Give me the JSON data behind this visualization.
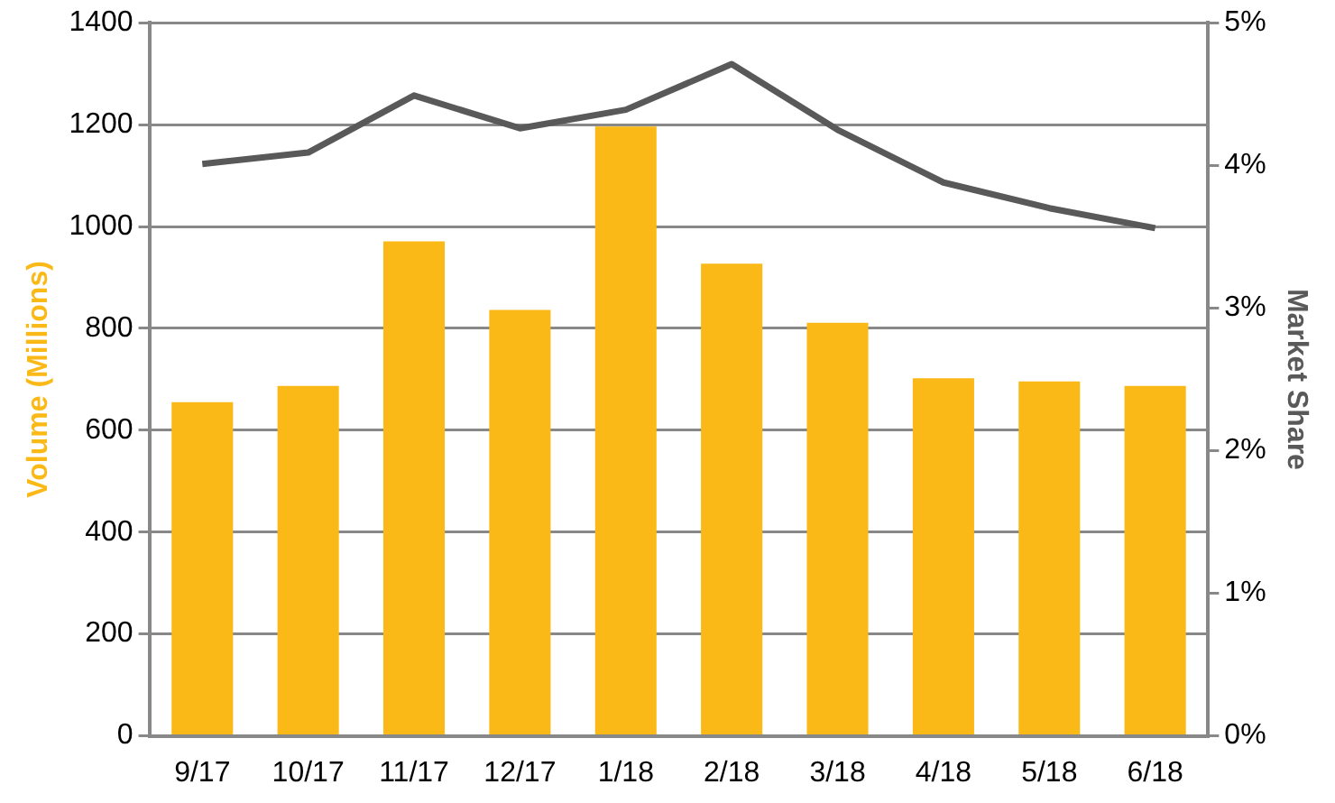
{
  "chart_data": {
    "type": "bar",
    "categories": [
      "9/17",
      "10/17",
      "11/17",
      "12/17",
      "1/18",
      "2/18",
      "3/18",
      "4/18",
      "5/18",
      "6/18"
    ],
    "ylabel": "Volume (Millions)",
    "y2label": "Market Share",
    "series": [
      {
        "color": "#fbb917",
        "values": [
          655,
          687,
          971,
          836,
          1196,
          927,
          811,
          702,
          696,
          687
        ]
      },
      {
        "type": "line",
        "axis": "y2",
        "color": "#595959",
        "values": [
          4.01,
          4.09,
          4.49,
          4.26,
          4.39,
          4.71,
          4.25,
          3.88,
          3.7,
          3.56
        ]
      }
    ],
    "ylim": [
      0,
      1400
    ],
    "yticks": [
      0,
      200,
      400,
      600,
      800,
      1000,
      1200,
      1400
    ],
    "y2lim": [
      0,
      5
    ],
    "y2ticks": [
      {
        "value": 0,
        "label": "0%"
      },
      {
        "value": 1,
        "label": "1%"
      },
      {
        "value": 2,
        "label": "2%"
      },
      {
        "value": 3,
        "label": "3%"
      },
      {
        "value": 4,
        "label": "4%"
      },
      {
        "value": 5,
        "label": "5%"
      }
    ],
    "grid": "y",
    "legend": false,
    "marker": "none",
    "line_style": "solid"
  }
}
